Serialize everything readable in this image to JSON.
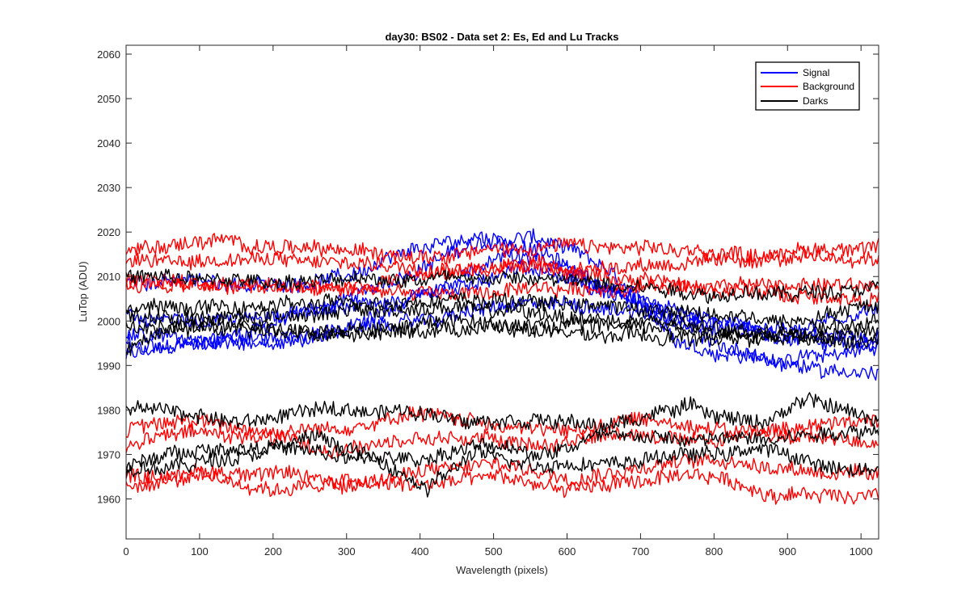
{
  "chart_data": {
    "type": "line",
    "title": "day30: BS02 - Data set 2: Es, Ed and Lu Tracks",
    "xlabel": "Wavelength (pixels)",
    "ylabel": "LuTop (ADU)",
    "xlim": [
      0,
      1024
    ],
    "ylim": [
      1951,
      2062
    ],
    "xticks": [
      0,
      100,
      200,
      300,
      400,
      500,
      600,
      700,
      800,
      900,
      1000
    ],
    "yticks": [
      1960,
      1970,
      1980,
      1990,
      2000,
      2010,
      2020,
      2030,
      2040,
      2050,
      2060
    ],
    "grid": false,
    "legend_position": "top-right",
    "colors": {
      "Signal": "#0000ff",
      "Background": "#ff0000",
      "Darks": "#000000"
    },
    "legend": [
      "Signal",
      "Background",
      "Darks"
    ],
    "series": [
      {
        "name": "Signal",
        "points": [
          [
            0,
            1992
          ],
          [
            60,
            1994
          ],
          [
            150,
            1997
          ],
          [
            250,
            2002
          ],
          [
            350,
            2008
          ],
          [
            450,
            2016
          ],
          [
            550,
            2019
          ],
          [
            600,
            2016
          ],
          [
            650,
            2012
          ],
          [
            700,
            2004
          ],
          [
            750,
            1996
          ],
          [
            800,
            1993
          ],
          [
            900,
            1991
          ],
          [
            1024,
            1994
          ]
        ]
      },
      {
        "name": "Signal",
        "points": [
          [
            0,
            2009
          ],
          [
            100,
            2009
          ],
          [
            200,
            2008
          ],
          [
            300,
            2010
          ],
          [
            400,
            2016
          ],
          [
            480,
            2019
          ],
          [
            560,
            2016
          ],
          [
            620,
            2010
          ],
          [
            700,
            2004
          ],
          [
            800,
            2000
          ],
          [
            900,
            1998
          ],
          [
            1024,
            2003
          ]
        ]
      },
      {
        "name": "Signal",
        "points": [
          [
            0,
            2001
          ],
          [
            100,
            2000
          ],
          [
            200,
            2001
          ],
          [
            300,
            2003
          ],
          [
            400,
            2005
          ],
          [
            480,
            2008
          ],
          [
            540,
            2012
          ],
          [
            600,
            2009
          ],
          [
            700,
            2004
          ],
          [
            800,
            2000
          ],
          [
            900,
            1996
          ],
          [
            1024,
            1997
          ]
        ]
      },
      {
        "name": "Signal",
        "points": [
          [
            0,
            1997
          ],
          [
            100,
            1996
          ],
          [
            200,
            1996
          ],
          [
            300,
            1998
          ],
          [
            400,
            2000
          ],
          [
            500,
            2003
          ],
          [
            600,
            2004
          ],
          [
            700,
            2002
          ],
          [
            800,
            1999
          ],
          [
            900,
            1996
          ],
          [
            1024,
            1995
          ]
        ]
      },
      {
        "name": "Signal",
        "points": [
          [
            0,
            1995
          ],
          [
            60,
            1994
          ],
          [
            150,
            1995
          ],
          [
            250,
            1996
          ],
          [
            350,
            2002
          ],
          [
            450,
            2009
          ],
          [
            520,
            2015
          ],
          [
            600,
            2012
          ],
          [
            700,
            2004
          ],
          [
            800,
            1995
          ],
          [
            900,
            1990
          ],
          [
            1024,
            1988
          ]
        ]
      },
      {
        "name": "Background",
        "points": [
          [
            0,
            2016
          ],
          [
            120,
            2018
          ],
          [
            250,
            2016
          ],
          [
            400,
            2015
          ],
          [
            500,
            2016
          ],
          [
            600,
            2017
          ],
          [
            700,
            2016
          ],
          [
            850,
            2015
          ],
          [
            1024,
            2017
          ]
        ]
      },
      {
        "name": "Background",
        "points": [
          [
            0,
            2013
          ],
          [
            150,
            2014
          ],
          [
            300,
            2013
          ],
          [
            450,
            2012
          ],
          [
            600,
            2012
          ],
          [
            750,
            2013
          ],
          [
            900,
            2014
          ],
          [
            1024,
            2014
          ]
        ]
      },
      {
        "name": "Background",
        "points": [
          [
            0,
            2008
          ],
          [
            150,
            2008
          ],
          [
            300,
            2007
          ],
          [
            450,
            2006
          ],
          [
            600,
            2007
          ],
          [
            750,
            2008
          ],
          [
            900,
            2008
          ],
          [
            1024,
            2008
          ]
        ]
      },
      {
        "name": "Background",
        "points": [
          [
            0,
            2009
          ],
          [
            150,
            2008
          ],
          [
            300,
            2008
          ],
          [
            450,
            2011
          ],
          [
            550,
            2013
          ],
          [
            650,
            2010
          ],
          [
            800,
            2007
          ],
          [
            1024,
            2005
          ]
        ]
      },
      {
        "name": "Darks",
        "points": [
          [
            0,
            2010
          ],
          [
            150,
            2009
          ],
          [
            300,
            2009
          ],
          [
            450,
            2010
          ],
          [
            600,
            2009
          ],
          [
            700,
            2008
          ],
          [
            800,
            2006
          ],
          [
            900,
            2006
          ],
          [
            1024,
            2008
          ]
        ]
      },
      {
        "name": "Darks",
        "points": [
          [
            0,
            2003
          ],
          [
            150,
            2003
          ],
          [
            300,
            2004
          ],
          [
            450,
            2005
          ],
          [
            600,
            2004
          ],
          [
            750,
            2002
          ],
          [
            900,
            2000
          ],
          [
            1024,
            2004
          ]
        ]
      },
      {
        "name": "Darks",
        "points": [
          [
            0,
            2001
          ],
          [
            150,
            2001
          ],
          [
            300,
            2002
          ],
          [
            450,
            2003
          ],
          [
            600,
            2001
          ],
          [
            750,
            1999
          ],
          [
            900,
            1997
          ],
          [
            1024,
            2000
          ]
        ]
      },
      {
        "name": "Darks",
        "points": [
          [
            0,
            1994
          ],
          [
            60,
            1998
          ],
          [
            150,
            2000
          ],
          [
            250,
            1997
          ],
          [
            350,
            1998
          ],
          [
            450,
            2000
          ],
          [
            600,
            1997
          ],
          [
            750,
            1996
          ],
          [
            900,
            1996
          ],
          [
            1024,
            1998
          ]
        ]
      },
      {
        "name": "Darks",
        "points": [
          [
            0,
            1998
          ],
          [
            100,
            1999
          ],
          [
            250,
            1997
          ],
          [
            400,
            1998
          ],
          [
            550,
            1999
          ],
          [
            700,
            1999
          ],
          [
            850,
            1997
          ],
          [
            1024,
            1996
          ]
        ]
      },
      {
        "name": "Background",
        "points": [
          [
            0,
            1975
          ],
          [
            80,
            1978
          ],
          [
            200,
            1975
          ],
          [
            300,
            1976
          ],
          [
            400,
            1979
          ],
          [
            500,
            1977
          ],
          [
            600,
            1975
          ],
          [
            700,
            1978
          ],
          [
            800,
            1976
          ],
          [
            900,
            1974
          ],
          [
            1024,
            1973
          ]
        ]
      },
      {
        "name": "Background",
        "points": [
          [
            0,
            1972
          ],
          [
            80,
            1975
          ],
          [
            180,
            1974
          ],
          [
            280,
            1971
          ],
          [
            380,
            1973
          ],
          [
            480,
            1974
          ],
          [
            580,
            1972
          ],
          [
            680,
            1975
          ],
          [
            800,
            1973
          ],
          [
            900,
            1976
          ],
          [
            1024,
            1978
          ]
        ]
      },
      {
        "name": "Background",
        "points": [
          [
            0,
            1965
          ],
          [
            100,
            1966
          ],
          [
            200,
            1966
          ],
          [
            300,
            1963
          ],
          [
            400,
            1966
          ],
          [
            500,
            1968
          ],
          [
            600,
            1965
          ],
          [
            700,
            1967
          ],
          [
            800,
            1969
          ],
          [
            900,
            1967
          ],
          [
            1024,
            1965
          ]
        ]
      },
      {
        "name": "Background",
        "points": [
          [
            0,
            1963
          ],
          [
            100,
            1965
          ],
          [
            200,
            1962
          ],
          [
            300,
            1964
          ],
          [
            400,
            1963
          ],
          [
            500,
            1965
          ],
          [
            600,
            1962
          ],
          [
            700,
            1964
          ],
          [
            800,
            1965
          ],
          [
            880,
            1961
          ],
          [
            1024,
            1961
          ]
        ]
      },
      {
        "name": "Darks",
        "points": [
          [
            0,
            1980
          ],
          [
            60,
            1980
          ],
          [
            150,
            1977
          ],
          [
            260,
            1980
          ],
          [
            360,
            1980
          ],
          [
            460,
            1978
          ],
          [
            560,
            1978
          ],
          [
            650,
            1976
          ],
          [
            760,
            1981
          ],
          [
            860,
            1977
          ],
          [
            930,
            1982
          ],
          [
            1024,
            1978
          ]
        ]
      },
      {
        "name": "Darks",
        "points": [
          [
            0,
            1967
          ],
          [
            80,
            1971
          ],
          [
            200,
            1972
          ],
          [
            300,
            1969
          ],
          [
            400,
            1969
          ],
          [
            480,
            1972
          ],
          [
            560,
            1970
          ],
          [
            660,
            1975
          ],
          [
            760,
            1973
          ],
          [
            880,
            1974
          ],
          [
            1024,
            1976
          ]
        ]
      },
      {
        "name": "Darks",
        "points": [
          [
            0,
            1966
          ],
          [
            60,
            1967
          ],
          [
            160,
            1970
          ],
          [
            260,
            1974
          ],
          [
            350,
            1968
          ],
          [
            410,
            1962
          ],
          [
            470,
            1970
          ],
          [
            560,
            1968
          ],
          [
            660,
            1968
          ],
          [
            760,
            1970
          ],
          [
            880,
            1971
          ],
          [
            980,
            1966
          ],
          [
            1024,
            1967
          ]
        ]
      }
    ]
  }
}
